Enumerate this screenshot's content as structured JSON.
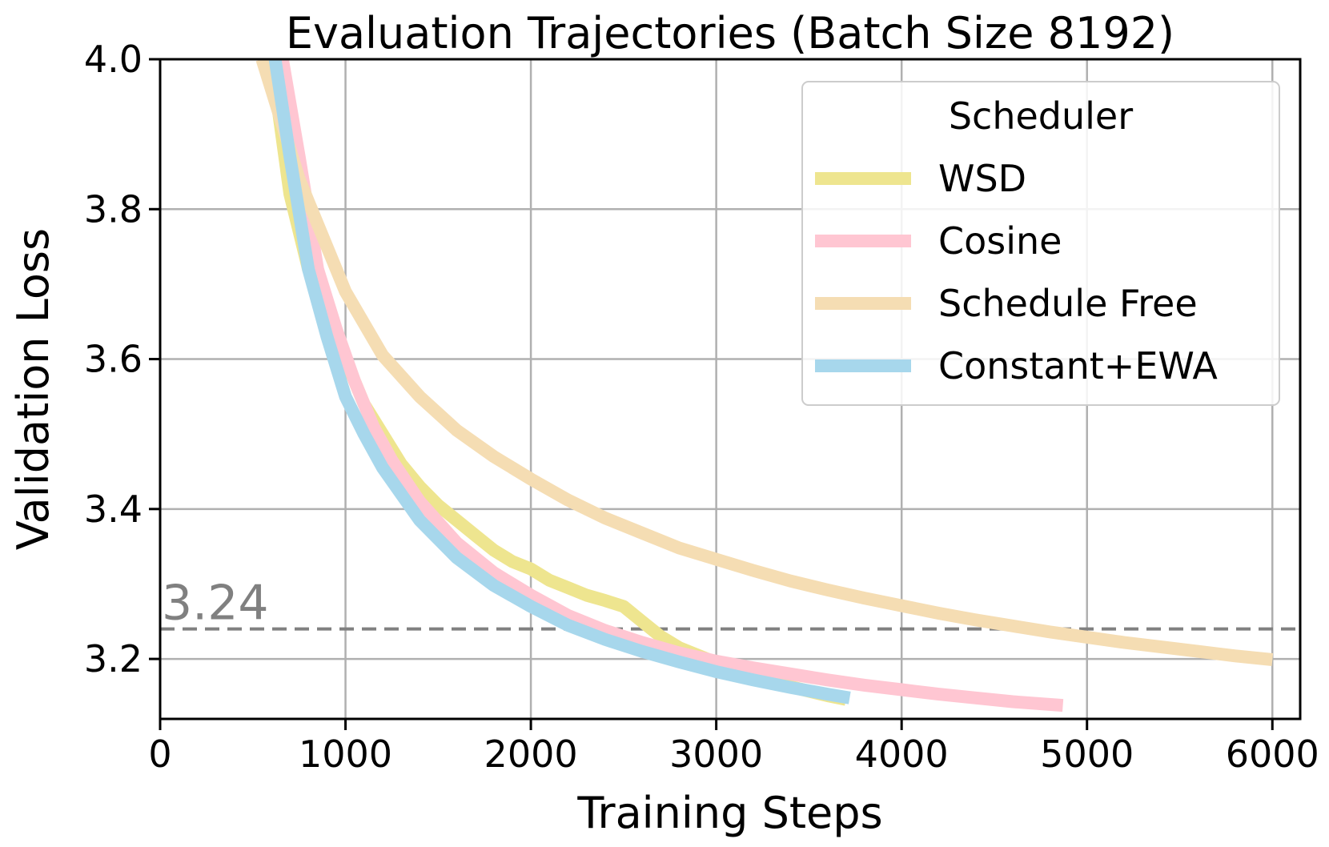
{
  "chart_data": {
    "type": "line",
    "title": "Evaluation Trajectories (Batch Size 8192)",
    "xlabel": "Training Steps",
    "ylabel": "Validation Loss",
    "xlim": [
      0,
      6150
    ],
    "ylim": [
      3.12,
      4.0
    ],
    "xticks": [
      0,
      1000,
      2000,
      3000,
      4000,
      5000,
      6000
    ],
    "xtick_labels": [
      "0",
      "1000",
      "2000",
      "3000",
      "4000",
      "5000",
      "6000"
    ],
    "yticks": [
      3.2,
      3.4,
      3.6,
      3.8,
      4.0
    ],
    "ytick_labels": [
      "3.2",
      "3.4",
      "3.6",
      "3.8",
      "4.0"
    ],
    "grid": true,
    "reference_line": {
      "y": 3.24,
      "label": "3.24",
      "color": "#808080",
      "style": "dashed"
    },
    "legend": {
      "title": "Scheduler",
      "location": "top-right"
    },
    "series": [
      {
        "name": "WSD",
        "color": "#eee58f",
        "x": [
          600,
          700,
          800,
          900,
          1000,
          1100,
          1200,
          1300,
          1400,
          1500,
          1600,
          1700,
          1800,
          1900,
          2000,
          2100,
          2200,
          2300,
          2400,
          2500,
          2600,
          2700,
          2800,
          2900,
          3000,
          3100,
          3200,
          3300,
          3400,
          3500,
          3600,
          3700
        ],
        "y": [
          4.0,
          3.82,
          3.72,
          3.66,
          3.6,
          3.54,
          3.5,
          3.46,
          3.43,
          3.405,
          3.385,
          3.365,
          3.345,
          3.33,
          3.32,
          3.305,
          3.295,
          3.285,
          3.278,
          3.27,
          3.25,
          3.23,
          3.215,
          3.205,
          3.195,
          3.185,
          3.177,
          3.17,
          3.163,
          3.157,
          3.151,
          3.146
        ]
      },
      {
        "name": "Cosine",
        "color": "#ffc6d2",
        "x": [
          660,
          750,
          850,
          950,
          1050,
          1150,
          1250,
          1400,
          1600,
          1800,
          2000,
          2200,
          2400,
          2600,
          2800,
          3000,
          3200,
          3400,
          3600,
          3800,
          4000,
          4200,
          4400,
          4600,
          4870
        ],
        "y": [
          4.0,
          3.87,
          3.72,
          3.64,
          3.57,
          3.51,
          3.465,
          3.41,
          3.355,
          3.315,
          3.285,
          3.258,
          3.238,
          3.222,
          3.208,
          3.197,
          3.188,
          3.18,
          3.172,
          3.165,
          3.159,
          3.153,
          3.148,
          3.143,
          3.138
        ]
      },
      {
        "name": "Schedule Free",
        "color": "#f5ddb3",
        "x": [
          550,
          650,
          750,
          850,
          1000,
          1200,
          1400,
          1600,
          1800,
          2000,
          2200,
          2400,
          2600,
          2800,
          3000,
          3200,
          3400,
          3600,
          3800,
          4000,
          4200,
          4400,
          4600,
          4800,
          5000,
          5200,
          5400,
          5600,
          5800,
          6000
        ],
        "y": [
          4.0,
          3.92,
          3.84,
          3.78,
          3.69,
          3.605,
          3.55,
          3.505,
          3.47,
          3.44,
          3.412,
          3.388,
          3.368,
          3.348,
          3.333,
          3.318,
          3.304,
          3.292,
          3.281,
          3.271,
          3.261,
          3.252,
          3.244,
          3.236,
          3.229,
          3.222,
          3.216,
          3.21,
          3.204,
          3.199
        ]
      },
      {
        "name": "Constant+EWA",
        "color": "#a7d7ec",
        "x": [
          620,
          700,
          800,
          900,
          1000,
          1100,
          1200,
          1400,
          1600,
          1800,
          2000,
          2200,
          2400,
          2600,
          2800,
          3000,
          3200,
          3400,
          3600,
          3720
        ],
        "y": [
          4.0,
          3.87,
          3.72,
          3.63,
          3.55,
          3.5,
          3.455,
          3.385,
          3.335,
          3.298,
          3.27,
          3.245,
          3.226,
          3.21,
          3.196,
          3.183,
          3.172,
          3.162,
          3.153,
          3.148
        ]
      }
    ]
  }
}
